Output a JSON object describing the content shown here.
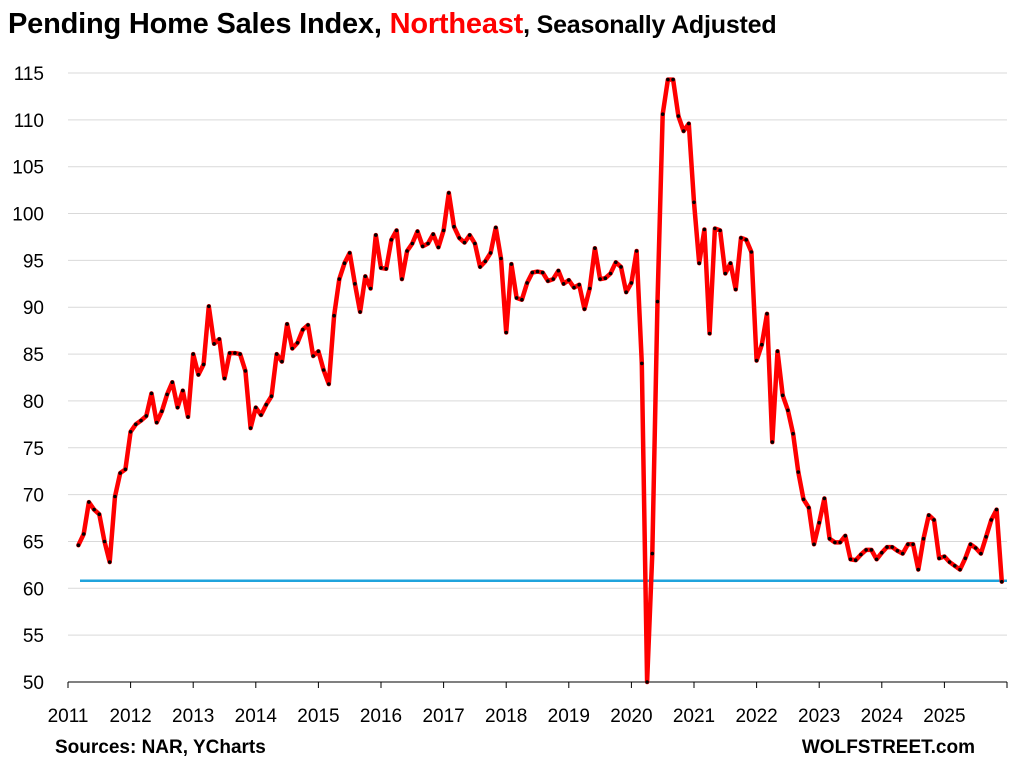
{
  "title": {
    "part1": "Pending Home Sales Index, ",
    "part2": "Northeast",
    "part3": ", Seasonally Adjusted"
  },
  "footer": {
    "sources": "Sources: NAR, YCharts",
    "brand": "WOLFSTREET.com"
  },
  "colors": {
    "series_line": "#ff0000",
    "series_dots": "#000000",
    "reference_line": "#1fa3dc",
    "grid": "#d9d9d9",
    "title_accent": "#ff0000"
  },
  "chart_data": {
    "type": "line",
    "ylim": [
      50,
      115
    ],
    "yticks": [
      50,
      55,
      60,
      65,
      70,
      75,
      80,
      85,
      90,
      95,
      100,
      105,
      110,
      115
    ],
    "xlim": [
      2011,
      2026
    ],
    "xticks": [
      "2011",
      "2012",
      "2013",
      "2014",
      "2015",
      "2016",
      "2017",
      "2018",
      "2019",
      "2020",
      "2021",
      "2022",
      "2023",
      "2024",
      "2025"
    ],
    "grid": "horizontal",
    "reference_line": {
      "value": 60.8
    },
    "series": [
      {
        "start": "2011-03",
        "frequency": "monthly",
        "values": [
          64.6,
          65.8,
          69.2,
          68.4,
          67.9,
          65.0,
          62.8,
          69.8,
          72.3,
          72.7,
          76.7,
          77.5,
          77.9,
          78.4,
          80.8,
          77.7,
          78.9,
          80.7,
          82.0,
          79.3,
          81.1,
          78.3,
          85.0,
          82.8,
          83.9,
          90.1,
          86.1,
          86.6,
          82.4,
          85.1,
          85.1,
          85.0,
          83.2,
          77.1,
          79.3,
          78.5,
          79.6,
          80.5,
          85.0,
          84.2,
          88.2,
          85.6,
          86.2,
          87.6,
          88.1,
          84.8,
          85.3,
          83.3,
          81.8,
          89.1,
          93.0,
          94.7,
          95.8,
          92.5,
          89.5,
          93.3,
          92.0,
          97.7,
          94.2,
          94.1,
          97.2,
          98.2,
          93.0,
          96.0,
          96.8,
          98.1,
          96.5,
          96.8,
          97.8,
          96.4,
          98.2,
          102.2,
          98.6,
          97.4,
          96.9,
          97.7,
          96.8,
          94.3,
          94.9,
          95.8,
          98.5,
          95.2,
          87.3,
          94.6,
          91.0,
          90.8,
          92.6,
          93.7,
          93.8,
          93.7,
          92.8,
          93.0,
          93.9,
          92.5,
          92.9,
          92.1,
          92.4,
          89.8,
          92.0,
          96.3,
          93.0,
          93.1,
          93.6,
          94.8,
          94.3,
          91.6,
          92.6,
          96.0,
          84.0,
          50.0,
          63.7,
          90.6,
          110.6,
          114.3,
          114.3,
          110.4,
          108.8,
          109.6,
          101.2,
          94.7,
          98.3,
          87.2,
          98.4,
          98.2,
          93.6,
          94.7,
          91.9,
          97.4,
          97.2,
          95.9,
          84.3,
          86.0,
          89.3,
          75.6,
          85.3,
          80.6,
          79.0,
          76.5,
          72.4,
          69.5,
          68.6,
          64.7,
          67.0,
          69.6,
          65.3,
          64.9,
          64.9,
          65.6,
          63.1,
          63.0,
          63.6,
          64.1,
          64.1,
          63.1,
          63.8,
          64.4,
          64.4,
          64.0,
          63.7,
          64.7,
          64.7,
          62.0,
          65.3,
          67.8,
          67.3,
          63.2,
          63.4,
          62.8,
          62.4,
          62.0,
          63.2,
          64.7,
          64.3,
          63.7,
          65.5,
          67.3,
          68.4,
          60.7
        ]
      }
    ]
  }
}
